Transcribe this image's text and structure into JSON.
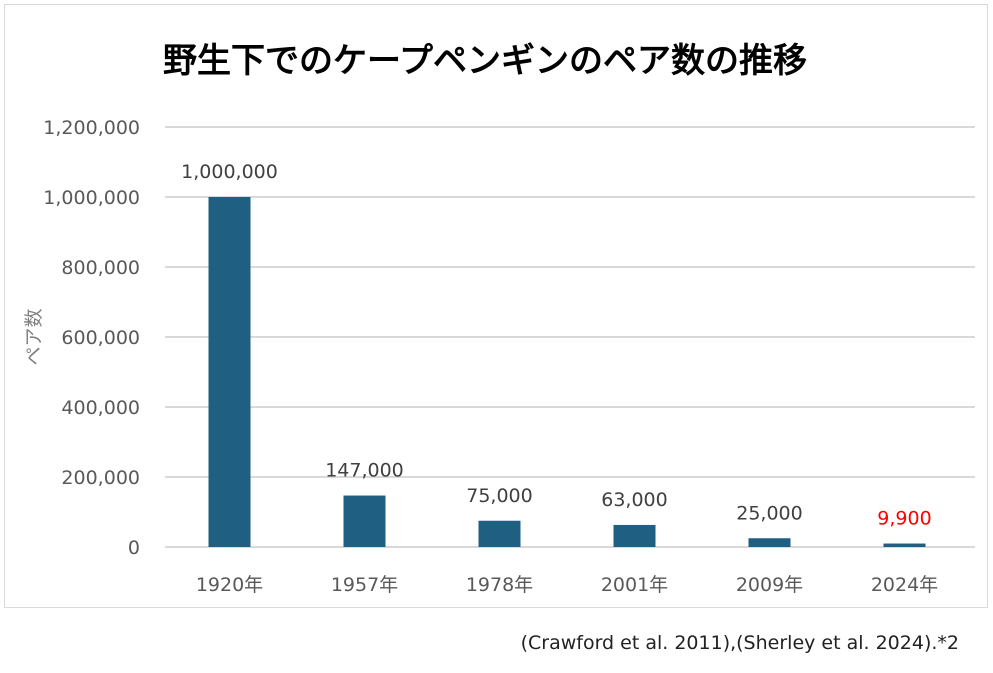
{
  "chart_data": {
    "type": "bar",
    "title": "野生下でのケープペンギンのペア数の推移",
    "ylabel": "ペア数",
    "xlabel": "",
    "categories": [
      "1920年",
      "1957年",
      "1978年",
      "2001年",
      "2009年",
      "2024年"
    ],
    "values": [
      1000000,
      147000,
      75000,
      63000,
      25000,
      9900
    ],
    "data_labels": [
      "1,000,000",
      "147,000",
      "75,000",
      "63,000",
      "25,000",
      "9,900"
    ],
    "ylim": [
      0,
      1200000
    ],
    "yticks": [
      0,
      200000,
      400000,
      600000,
      800000,
      1000000,
      1200000
    ],
    "ytick_labels": [
      "0",
      "200,000",
      "400,000",
      "600,000",
      "800,000",
      "1,000,000",
      "1,200,000"
    ],
    "grid": true,
    "legend": "none",
    "colors": {
      "bar": "#1f5f82",
      "label": "#404040",
      "highlight_label": "#ff0000",
      "grid": "#d9d9d9"
    },
    "highlight_index": 5
  },
  "source": "(Crawford et al. 2011),(Sherley et al. 2024).*2"
}
